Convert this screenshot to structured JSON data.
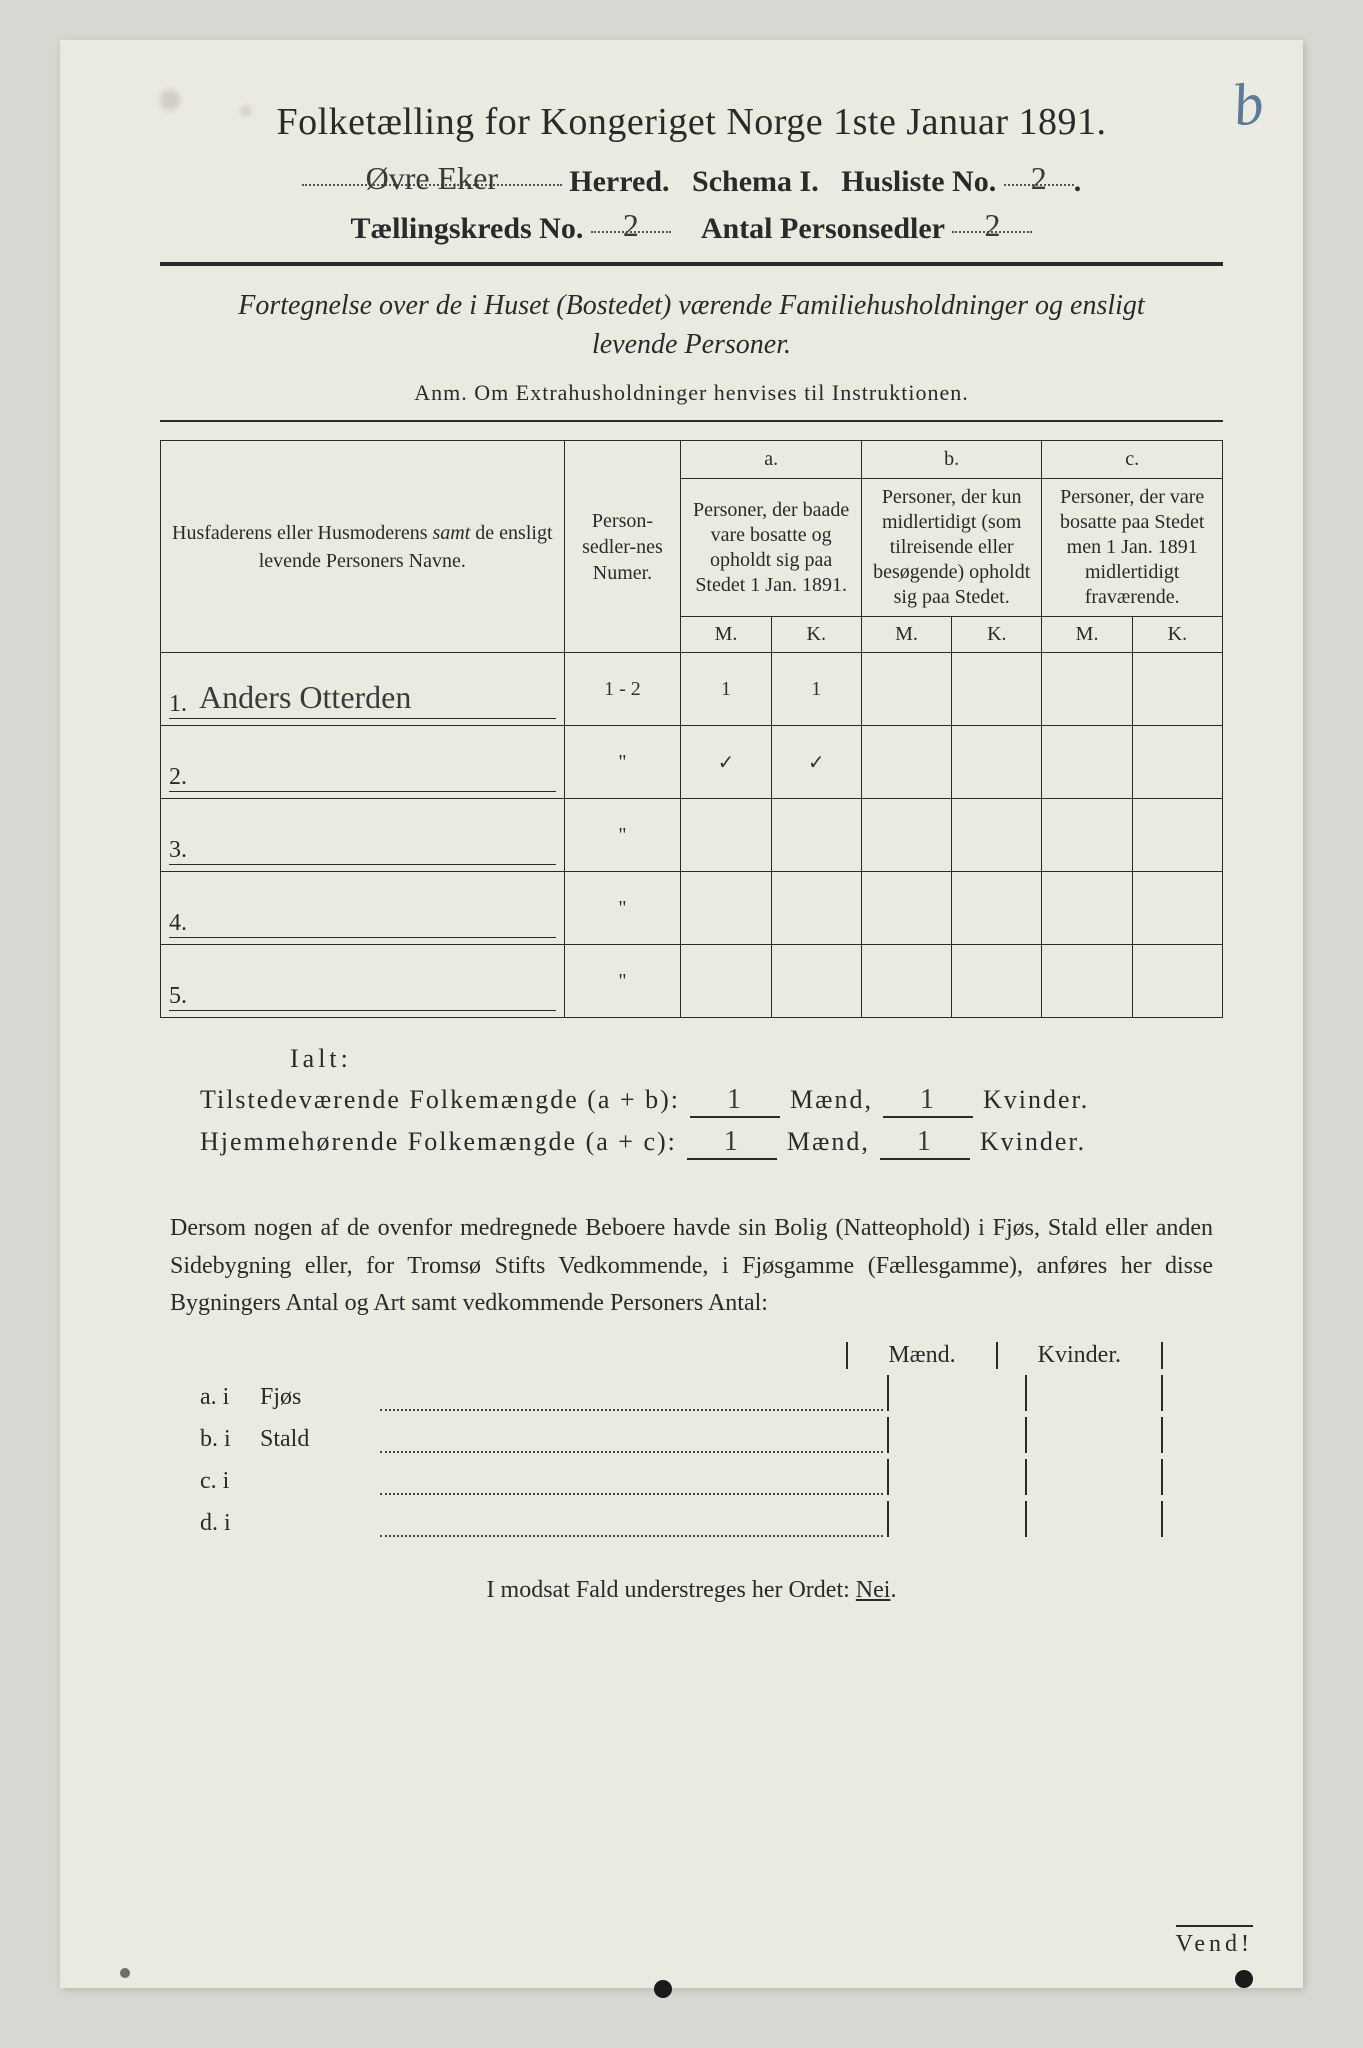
{
  "page_marking": "b",
  "title": "Folketælling for Kongeriget Norge 1ste Januar 1891.",
  "header": {
    "herred_value": "Øvre Eker",
    "herred_label": "Herred.",
    "schema_label": "Schema I.",
    "husliste_label": "Husliste No.",
    "husliste_value": "2",
    "kreds_label": "Tællingskreds No.",
    "kreds_value": "2",
    "antal_label": "Antal Personsedler",
    "antal_value": "2"
  },
  "subtitle": "Fortegnelse over de i Huset (Bostedet) værende Familiehusholdninger og ensligt levende Personer.",
  "anm": "Anm.  Om Extrahusholdninger henvises til Instruktionen.",
  "table": {
    "col_name": "Husfaderens eller Husmoderens samt de ensligt levende Personers Navne.",
    "col_num": "Person-sedler-nes Numer.",
    "col_a_top": "a.",
    "col_a": "Personer, der baade vare bosatte og opholdt sig paa Stedet 1 Jan. 1891.",
    "col_b_top": "b.",
    "col_b": "Personer, der kun midlertidigt (som tilreisende eller besøgende) opholdt sig paa Stedet.",
    "col_c_top": "c.",
    "col_c": "Personer, der vare bosatte paa Stedet men 1 Jan. 1891 midlertidigt fraværende.",
    "mk_m": "M.",
    "mk_k": "K.",
    "rows": [
      {
        "n": "1.",
        "name": "Anders Otterden",
        "num": "1 - 2",
        "am": "1",
        "ak": "1",
        "bm": "",
        "bk": "",
        "cm": "",
        "ck": ""
      },
      {
        "n": "2.",
        "name": "",
        "num": "\"",
        "am": "✓",
        "ak": "✓",
        "bm": "",
        "bk": "",
        "cm": "",
        "ck": ""
      },
      {
        "n": "3.",
        "name": "",
        "num": "\"",
        "am": "",
        "ak": "",
        "bm": "",
        "bk": "",
        "cm": "",
        "ck": ""
      },
      {
        "n": "4.",
        "name": "",
        "num": "\"",
        "am": "",
        "ak": "",
        "bm": "",
        "bk": "",
        "cm": "",
        "ck": ""
      },
      {
        "n": "5.",
        "name": "",
        "num": "\"",
        "am": "",
        "ak": "",
        "bm": "",
        "bk": "",
        "cm": "",
        "ck": ""
      }
    ]
  },
  "ialt": "Ialt:",
  "sums": {
    "tilstede_label": "Tilstedeværende Folkemængde (a + b):",
    "hjemme_label": "Hjemmehørende Folkemængde (a + c):",
    "maend": "Mænd,",
    "kvinder": "Kvinder.",
    "t_m": "1",
    "t_k": "1",
    "h_m": "1",
    "h_k": "1"
  },
  "para": "Dersom nogen af de ovenfor medregnede Beboere havde sin Bolig (Natteophold) i Fjøs, Stald eller anden Sidebygning eller, for Tromsø Stifts Vedkommende, i Fjøsgamme (Fællesgamme), anføres her disse Bygningers Antal og Art samt vedkommende Personers Antal:",
  "mkhead": {
    "m": "Mænd.",
    "k": "Kvinder."
  },
  "letters": [
    {
      "l": "a.  i",
      "t": "Fjøs"
    },
    {
      "l": "b.  i",
      "t": "Stald"
    },
    {
      "l": "c.  i",
      "t": ""
    },
    {
      "l": "d.  i",
      "t": ""
    }
  ],
  "nei_pre": "I modsat Fald understreges her Ordet: ",
  "nei": "Nei",
  "vend": "Vend!"
}
